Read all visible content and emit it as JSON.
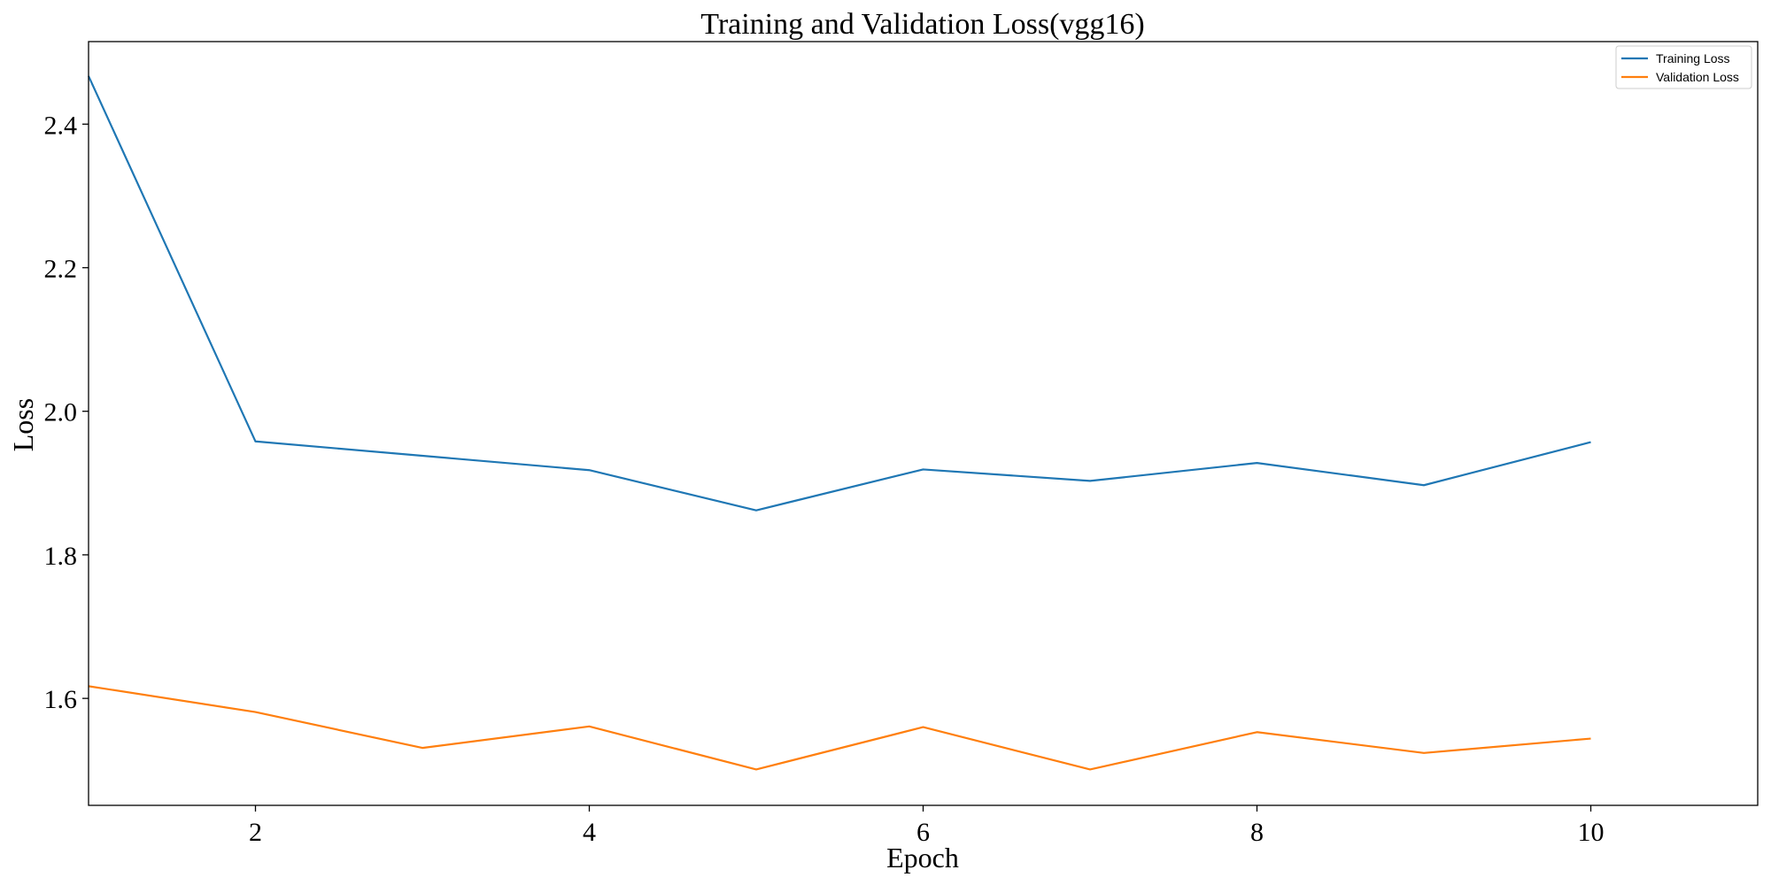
{
  "chart_data": {
    "type": "line",
    "title": "Training and Validation Loss(vgg16)",
    "xlabel": "Epoch",
    "ylabel": "Loss",
    "x": [
      1,
      2,
      3,
      4,
      5,
      6,
      7,
      8,
      9,
      10
    ],
    "xlim": [
      1,
      11
    ],
    "ylim": [
      1.451,
      2.515
    ],
    "xticks": [
      2,
      4,
      6,
      8,
      10
    ],
    "yticks": [
      1.6,
      1.8,
      2.0,
      2.2,
      2.4
    ],
    "xtick_labels": [
      "2",
      "4",
      "6",
      "8",
      "10"
    ],
    "ytick_labels": [
      "1.6",
      "1.8",
      "2.0",
      "2.2",
      "2.4"
    ],
    "grid": false,
    "legend_position": "top-right",
    "series": [
      {
        "name": "Training Loss",
        "color": "#1f77b4",
        "values": [
          2.467,
          1.958,
          1.938,
          1.918,
          1.862,
          1.919,
          1.903,
          1.928,
          1.897,
          1.957
        ]
      },
      {
        "name": "Validation Loss",
        "color": "#ff7f0e",
        "values": [
          1.617,
          1.581,
          1.531,
          1.561,
          1.501,
          1.56,
          1.501,
          1.553,
          1.524,
          1.544
        ]
      }
    ]
  }
}
